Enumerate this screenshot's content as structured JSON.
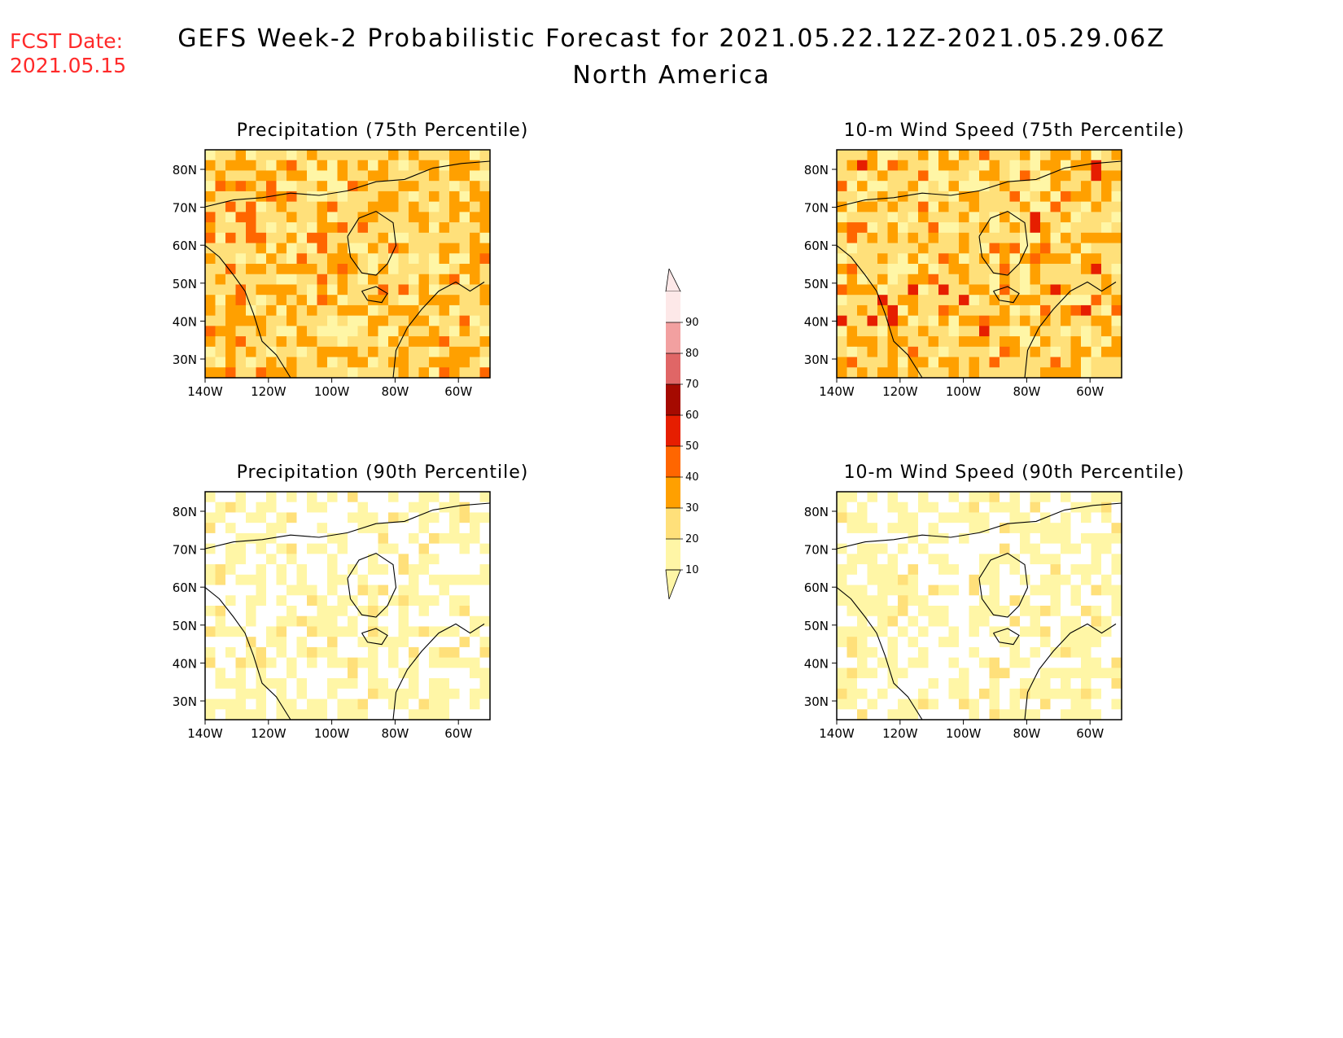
{
  "fcst": {
    "line1": "FCST Date:",
    "line2": "2021.05.15"
  },
  "title": {
    "main": "GEFS Week-2 Probabilistic Forecast for 2021.05.22.12Z-2021.05.29.06Z",
    "region": "North America"
  },
  "colors": {
    "fcst_text": "#ff2a2a",
    "levels": [
      "#ffffff",
      "#fff6a6",
      "#ffe07a",
      "#ffa000",
      "#ff6600",
      "#e61e00",
      "#a50a00",
      "#e06666",
      "#f2a0a0",
      "#fde8e8"
    ]
  },
  "colorbar": {
    "ticks": [
      "10",
      "20",
      "30",
      "40",
      "50",
      "60",
      "70",
      "80",
      "90"
    ]
  },
  "axes": {
    "lat_ticks": [
      "80N",
      "70N",
      "60N",
      "50N",
      "40N",
      "30N"
    ],
    "lon_ticks": [
      "140W",
      "120W",
      "100W",
      "80W",
      "60W"
    ]
  },
  "panels": [
    {
      "id": "precip75",
      "title": "Precipitation (75th Percentile)",
      "base_level": 2,
      "field": "precip"
    },
    {
      "id": "wind75",
      "title": "10-m Wind Speed (75th Percentile)",
      "base_level": 2,
      "field": "wind"
    },
    {
      "id": "precip90",
      "title": "Precipitation (90th Percentile)",
      "base_level": 0,
      "field": "precip"
    },
    {
      "id": "wind90",
      "title": "10-m Wind Speed (90th Percentile)",
      "base_level": 0,
      "field": "wind"
    }
  ]
}
